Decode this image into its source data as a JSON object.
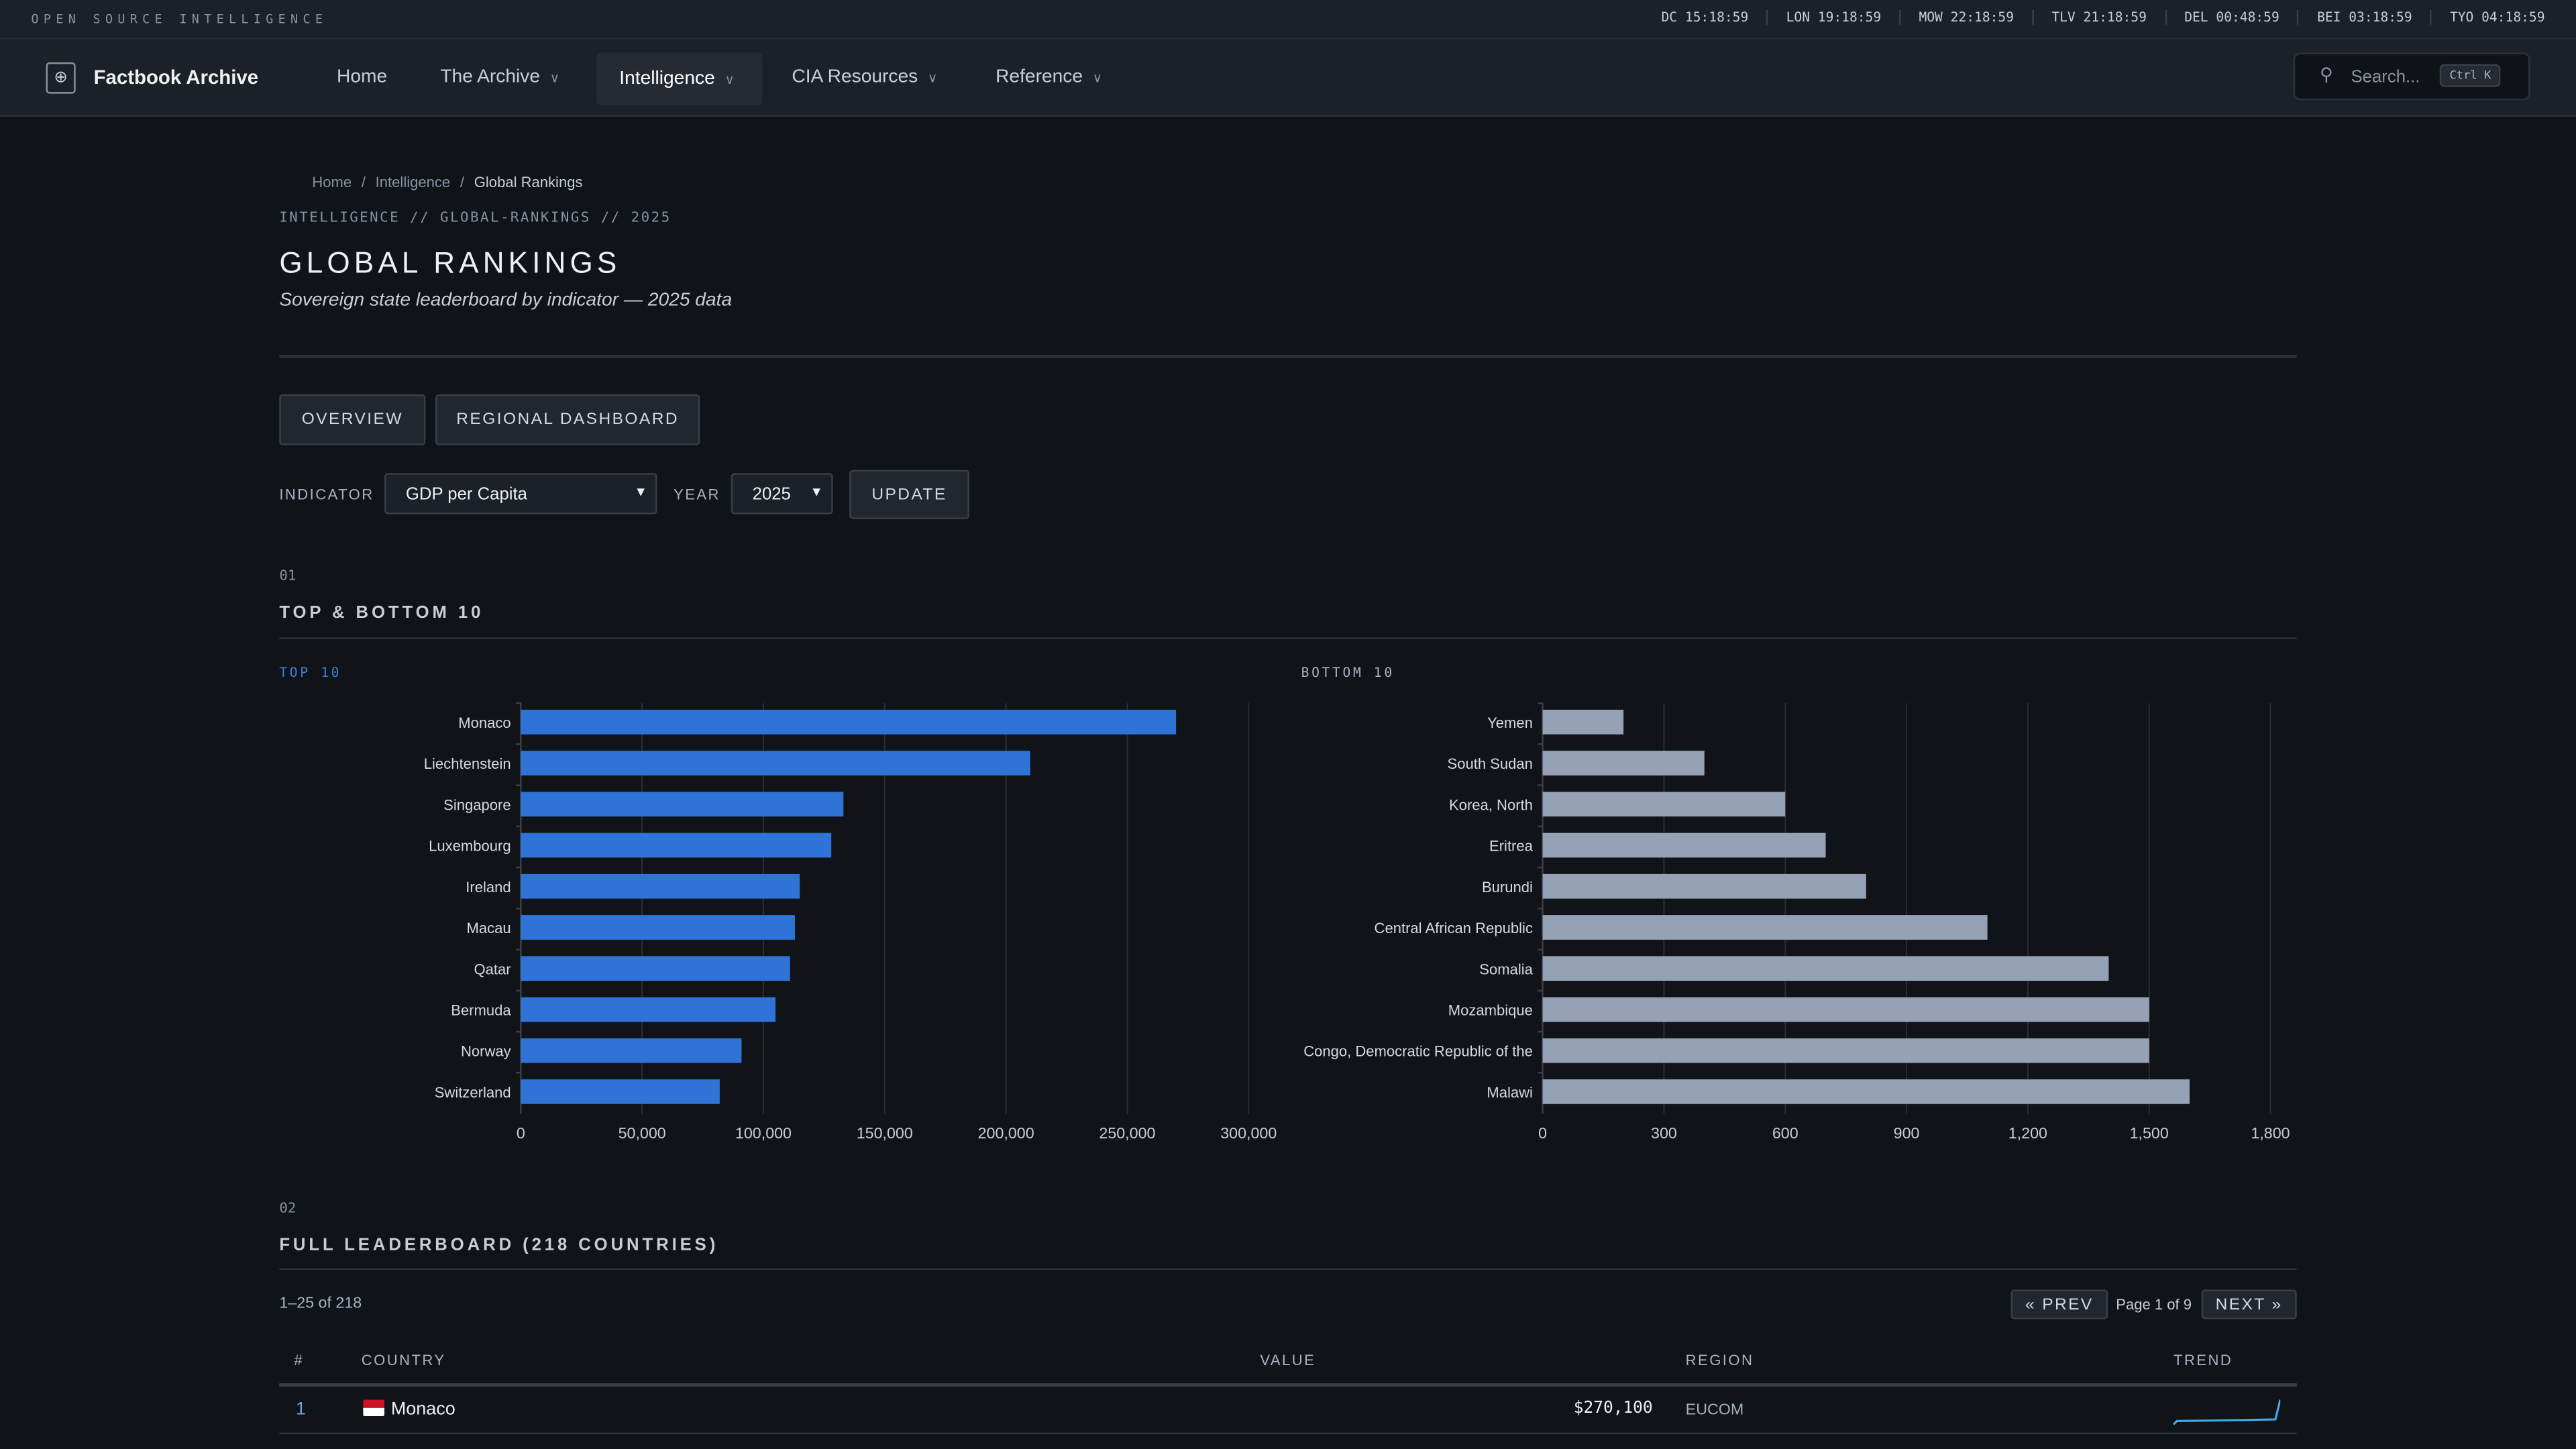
{
  "topbar": {
    "tagline": "OPEN SOURCE INTELLIGENCE",
    "clocks": [
      "DC 15:18:59",
      "LON 19:18:59",
      "MOW 22:18:59",
      "TLV 21:18:59",
      "DEL 00:48:59",
      "BEI 03:18:59",
      "TYO 04:18:59"
    ]
  },
  "nav": {
    "brand": "Factbook Archive",
    "logo_icon": "globe-icon",
    "items": [
      {
        "label": "Home"
      },
      {
        "label": "The Archive",
        "dropdown": true
      },
      {
        "label": "Intelligence",
        "dropdown": true,
        "active": true
      },
      {
        "label": "CIA Resources",
        "dropdown": true
      },
      {
        "label": "Reference",
        "dropdown": true
      }
    ],
    "search_placeholder": "Search...",
    "search_shortcut": "Ctrl K"
  },
  "breadcrumb": [
    "Home",
    "Intelligence",
    "Global Rankings"
  ],
  "page": {
    "path_label": "INTELLIGENCE // GLOBAL-RANKINGS // 2025",
    "title": "GLOBAL RANKINGS",
    "subtitle": "Sovereign state leaderboard by indicator — 2025 data"
  },
  "tabs": [
    "OVERVIEW",
    "REGIONAL DASHBOARD"
  ],
  "controls": {
    "indicator_label": "INDICATOR",
    "indicator_value": "GDP per Capita",
    "year_label": "YEAR",
    "year_value": "2025",
    "update_label": "UPDATE"
  },
  "section1": {
    "num": "01",
    "title": "TOP & BOTTOM 10"
  },
  "section2": {
    "num": "02",
    "title": "FULL LEADERBOARD (218 COUNTRIES)",
    "range": "1–25 of 218",
    "prev": "« PREV",
    "page": "Page 1 of 9",
    "next": "NEXT »"
  },
  "colors": {
    "accent": "#2f73d6",
    "bottom_bar": "#95a1b5",
    "background": "#101318"
  },
  "chart_data": [
    {
      "type": "bar",
      "orientation": "horizontal",
      "title": "TOP 10",
      "categories": [
        "Monaco",
        "Liechtenstein",
        "Singapore",
        "Luxembourg",
        "Ireland",
        "Macau",
        "Qatar",
        "Bermuda",
        "Norway",
        "Switzerland"
      ],
      "values": [
        270100,
        210000,
        133000,
        128000,
        115000,
        113000,
        111000,
        105000,
        91000,
        82000
      ],
      "xlim": [
        0,
        300000
      ],
      "xticks": [
        "0",
        "50,000",
        "100,000",
        "150,000",
        "200,000",
        "250,000",
        "300,000"
      ],
      "grid": true
    },
    {
      "type": "bar",
      "orientation": "horizontal",
      "title": "BOTTOM 10",
      "categories": [
        "Yemen",
        "South Sudan",
        "Korea, North",
        "Eritrea",
        "Burundi",
        "Central African Republic",
        "Somalia",
        "Mozambique",
        "Congo, Democratic Republic of the",
        "Malawi"
      ],
      "values": [
        200,
        400,
        600,
        700,
        800,
        1100,
        1400,
        1500,
        1500,
        1600
      ],
      "xlim": [
        0,
        1800
      ],
      "xticks": [
        "0",
        "300",
        "600",
        "900",
        "1,200",
        "1,500",
        "1,800"
      ],
      "grid": true
    }
  ],
  "table": {
    "headers": [
      "#",
      "COUNTRY",
      "VALUE",
      "REGION",
      "TREND"
    ],
    "rows": [
      {
        "rank": "1",
        "country": "Monaco",
        "value": "$270,100",
        "region": "EUCOM",
        "flag": "monaco-flag",
        "trend_color": "#3fa9e0"
      }
    ]
  }
}
